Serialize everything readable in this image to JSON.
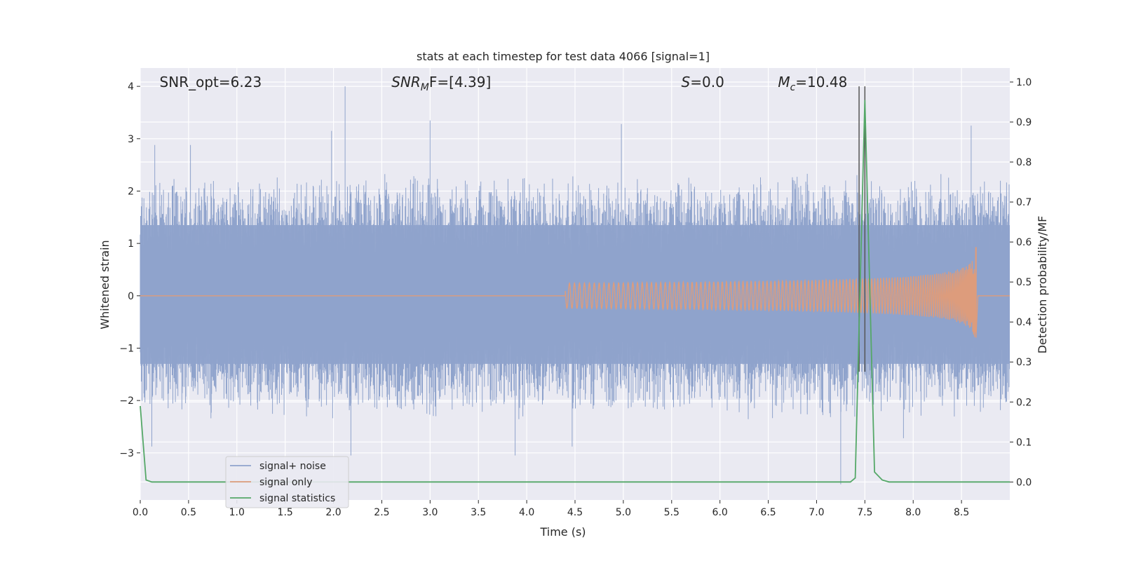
{
  "chart_data": {
    "type": "line",
    "title": "stats at each timestep for test data 4066 [signal=1]",
    "xlabel": "Time (s)",
    "ylabel_left": "Whitened strain",
    "ylabel_right": "Detection probability/MF",
    "xlim": [
      0.0,
      9.0
    ],
    "ylim_left": [
      -3.9,
      4.35
    ],
    "ylim_right": [
      -0.045,
      1.035
    ],
    "x_ticks": [
      0.0,
      0.5,
      1.0,
      1.5,
      2.0,
      2.5,
      3.0,
      3.5,
      4.0,
      4.5,
      5.0,
      5.5,
      6.0,
      6.5,
      7.0,
      7.5,
      8.0,
      8.5
    ],
    "x_tick_labels": [
      "0.0",
      "0.5",
      "1.0",
      "1.5",
      "2.0",
      "2.5",
      "3.0",
      "3.5",
      "4.0",
      "4.5",
      "5.0",
      "5.5",
      "6.0",
      "6.5",
      "7.0",
      "7.5",
      "8.0",
      "8.5"
    ],
    "y_left_ticks": [
      -3,
      -2,
      -1,
      0,
      1,
      2,
      3,
      4
    ],
    "y_left_tick_labels": [
      "−3",
      "−2",
      "−1",
      "0",
      "1",
      "2",
      "3",
      "4"
    ],
    "y_right_ticks": [
      0.0,
      0.1,
      0.2,
      0.3,
      0.4,
      0.5,
      0.6,
      0.7,
      0.8,
      0.9,
      1.0
    ],
    "y_right_tick_labels": [
      "0.0",
      "0.1",
      "0.2",
      "0.3",
      "0.4",
      "0.5",
      "0.6",
      "0.7",
      "0.8",
      "0.9",
      "1.0"
    ],
    "grid": true,
    "legend_placement": "lower-left",
    "annotations": [
      {
        "text": "SNR_opt=6.23",
        "x": 0.2
      },
      {
        "text": "SNR_MF=[4.39]",
        "x": 2.6,
        "display_main": "SNR",
        "display_sub": "M",
        "display_rest": "F=[4.39]"
      },
      {
        "text": "S=0.0",
        "x": 5.6,
        "display_main": "S",
        "display_sub": "",
        "display_rest": "=0.0"
      },
      {
        "text": "M_c=10.48",
        "x": 6.6,
        "display_main": "M",
        "display_sub": "c",
        "display_rest": "=10.48"
      }
    ],
    "vertical_lines_x": [
      7.44,
      7.5
    ],
    "series": [
      {
        "name": "signal+ noise",
        "axis": "left",
        "color": "#8fa3cc",
        "kind": "noise",
        "x_range": [
          0.0,
          9.0
        ],
        "envelope_typical": 1.6,
        "peaks": [
          {
            "x": 0.15,
            "y": 2.88
          },
          {
            "x": 0.52,
            "y": 2.88
          },
          {
            "x": 1.98,
            "y": 3.15
          },
          {
            "x": 2.12,
            "y": 4.0
          },
          {
            "x": 3.0,
            "y": 3.35
          },
          {
            "x": 4.98,
            "y": 3.28
          },
          {
            "x": 8.6,
            "y": 3.25
          },
          {
            "x": 0.12,
            "y": -2.88
          },
          {
            "x": 2.18,
            "y": -3.05
          },
          {
            "x": 3.88,
            "y": -3.05
          },
          {
            "x": 4.47,
            "y": -2.88
          },
          {
            "x": 7.25,
            "y": -3.6
          },
          {
            "x": 7.9,
            "y": -2.72
          }
        ]
      },
      {
        "name": "signal only",
        "axis": "left",
        "color": "#dd9c7c",
        "kind": "chirp",
        "start_x": 4.4,
        "peak_x": 8.65,
        "peak_amplitude": 0.93,
        "end_x": 9.0
      },
      {
        "name": "signal statistics",
        "axis": "right",
        "color": "#55a868",
        "kind": "line",
        "x": [
          0.0,
          0.06,
          0.12,
          7.35,
          7.4,
          7.5,
          7.6,
          7.68,
          7.75,
          9.0
        ],
        "y": [
          0.19,
          0.005,
          0.0,
          0.0,
          0.01,
          0.955,
          0.025,
          0.005,
          0.0,
          0.0
        ]
      }
    ],
    "colors": {
      "plot_bg": "#eaeaf2",
      "grid": "#ffffff",
      "vline": "#555555",
      "legend_bg": "#eaeaf2",
      "legend_border": "#cccccc"
    }
  }
}
